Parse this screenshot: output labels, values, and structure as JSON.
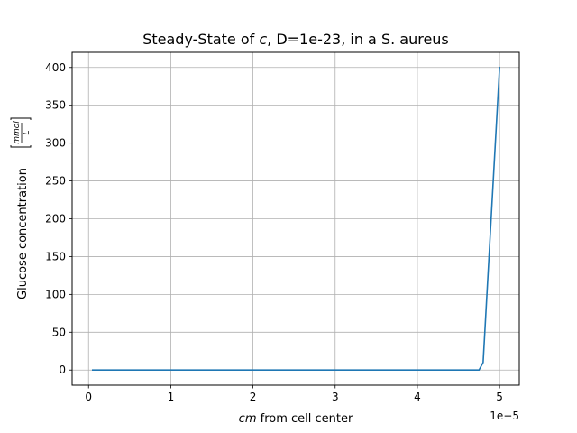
{
  "chart_data": {
    "type": "line",
    "title_main": "Steady-State of ",
    "title_var": "c",
    "title_rest": ", D=1e-23, in a S. aureus",
    "xlabel_var": "cm",
    "xlabel_rest": " from cell center",
    "ylabel_text": "Glucose concentration ",
    "ylabel_unit_num": "mmol",
    "ylabel_unit_den": "L",
    "x_offset_label": "1e−5",
    "xticks": [
      0,
      1,
      2,
      3,
      4,
      5
    ],
    "xtick_labels": [
      "0",
      "1",
      "2",
      "3",
      "4",
      "5"
    ],
    "yticks": [
      0,
      50,
      100,
      150,
      200,
      250,
      300,
      350,
      400
    ],
    "ytick_labels": [
      "0",
      "50",
      "100",
      "150",
      "200",
      "250",
      "300",
      "350",
      "400"
    ],
    "xlim": [
      -0.2,
      5.24
    ],
    "ylim": [
      -20,
      420
    ],
    "grid": true,
    "series_color": "#1f77b4",
    "series": [
      {
        "x": [
          0.05,
          0.5,
          1,
          1.5,
          2,
          2.5,
          3,
          3.5,
          4,
          4.5,
          4.75,
          4.8,
          5.0
        ],
        "y": [
          0,
          0,
          0,
          0,
          0,
          0,
          0,
          0,
          0,
          0,
          0,
          10,
          400
        ]
      }
    ]
  }
}
